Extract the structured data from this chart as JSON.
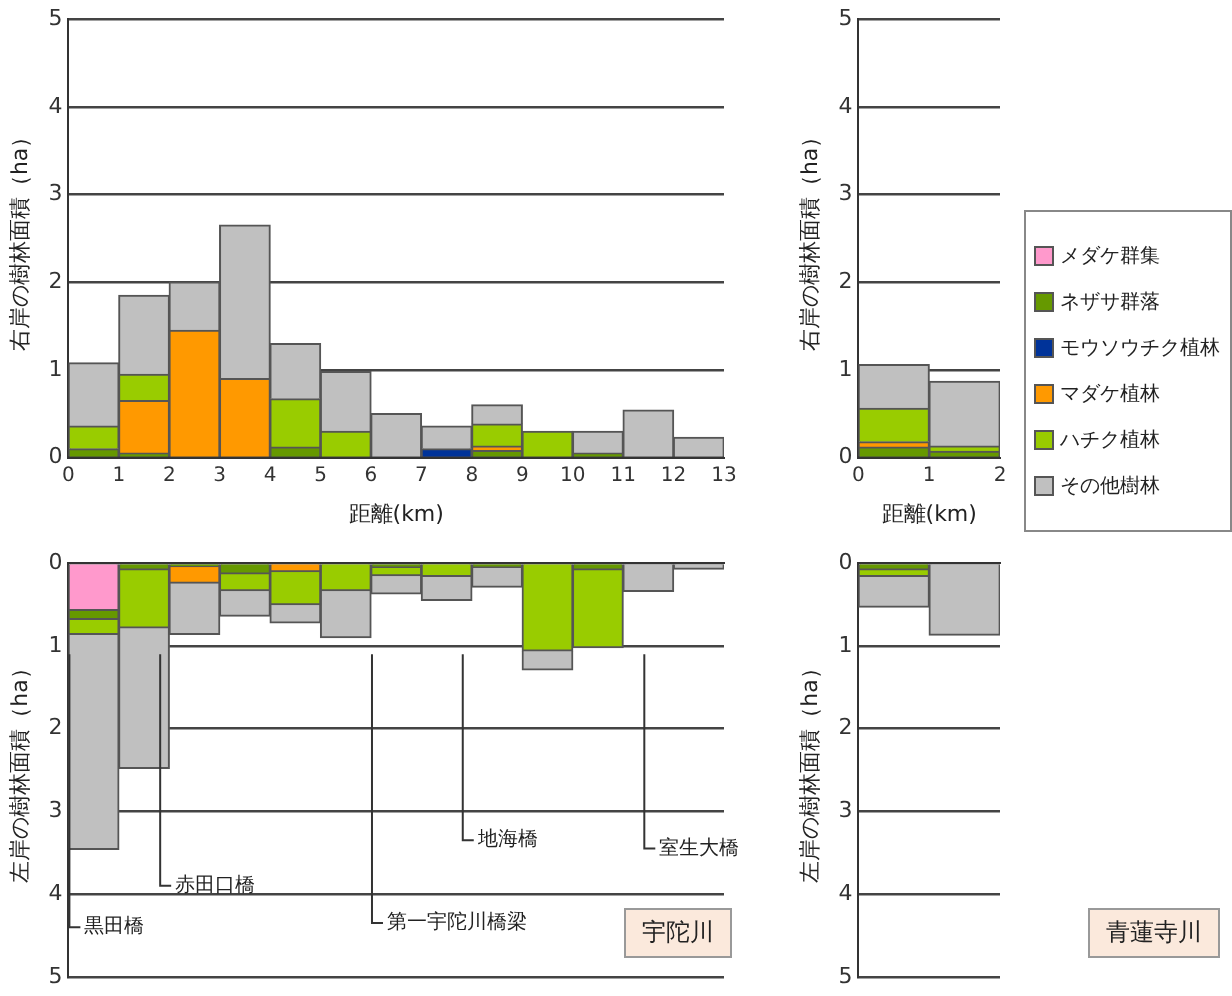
{
  "chart_data": [
    {
      "type": "bar",
      "stacked": true,
      "xlabel": "距離(km)",
      "ylabel": "右岸の樹林面積（ha）",
      "x": [
        0.5,
        1.5,
        2.5,
        3.5,
        4.5,
        5.5,
        6.5,
        7.5,
        8.5,
        9.5,
        10.5,
        11.5,
        12.5
      ],
      "xlim": [
        0,
        13
      ],
      "xticks": [
        0,
        1,
        2,
        3,
        4,
        5,
        6,
        7,
        8,
        9,
        10,
        11,
        12,
        13
      ],
      "ylim": [
        0,
        5
      ],
      "yticks": [
        0,
        1,
        2,
        3,
        4,
        5
      ],
      "grid": "y",
      "series": [
        {
          "color": "#669900",
          "values": [
            0.1,
            0.05,
            null,
            null,
            0.12,
            null,
            null,
            null,
            0.08,
            null,
            0.05,
            null,
            null
          ]
        },
        {
          "color": "#003399",
          "values": [
            null,
            null,
            null,
            null,
            null,
            null,
            null,
            0.1,
            null,
            null,
            null,
            null,
            null
          ]
        },
        {
          "color": "#ff9900",
          "values": [
            null,
            0.6,
            1.45,
            0.9,
            null,
            null,
            null,
            null,
            0.05,
            null,
            null,
            null,
            null
          ]
        },
        {
          "color": "#99cc00",
          "values": [
            0.26,
            0.3,
            null,
            null,
            0.55,
            0.3,
            null,
            null,
            0.25,
            0.3,
            null,
            null,
            null
          ]
        },
        {
          "color": "#c0c0c0",
          "values": [
            0.72,
            0.9,
            0.55,
            1.75,
            0.63,
            0.68,
            0.5,
            0.26,
            0.22,
            null,
            0.25,
            0.54,
            0.23
          ]
        }
      ]
    },
    {
      "type": "bar",
      "stacked": true,
      "xlabel": "距離(km)",
      "ylabel": "右岸の樹林面積（ha）",
      "x": [
        0.5,
        1.5
      ],
      "xlim": [
        0,
        2
      ],
      "xticks": [
        0,
        1,
        2
      ],
      "ylim": [
        0,
        5
      ],
      "yticks": [
        0,
        1,
        2,
        3,
        4,
        5
      ],
      "grid": "y",
      "legend": "right",
      "series": [
        {
          "name": "メダケ群集",
          "color": "#ff99cc",
          "values": [
            null,
            null
          ]
        },
        {
          "name": "ネザサ群落",
          "color": "#669900",
          "values": [
            0.12,
            0.07
          ]
        },
        {
          "name": "モウソウチク植林",
          "color": "#003399",
          "values": [
            null,
            null
          ]
        },
        {
          "name": "マダケ植林",
          "color": "#ff9900",
          "values": [
            0.06,
            null
          ]
        },
        {
          "name": "ハチク植林",
          "color": "#99cc00",
          "values": [
            0.38,
            0.06
          ]
        },
        {
          "name": "その他樹林",
          "color": "#c0c0c0",
          "values": [
            0.5,
            0.74
          ]
        }
      ]
    },
    {
      "type": "bar",
      "stacked": true,
      "ylabel": "左岸の樹林面積（ha）",
      "tick_labels": "y",
      "x": [
        0.5,
        1.5,
        2.5,
        3.5,
        4.5,
        5.5,
        6.5,
        7.5,
        8.5,
        9.5,
        10.5,
        11.5,
        12.5
      ],
      "xlim": [
        0,
        13
      ],
      "ylim": [
        5,
        0
      ],
      "yticks": [
        0,
        1,
        2,
        3,
        4,
        5
      ],
      "grid": "y",
      "ref_lines": [
        {
          "axis": "x",
          "value": 0,
          "label": "黒田橋"
        },
        {
          "axis": "x",
          "value": 1.8,
          "label": "赤田口橋"
        },
        {
          "axis": "x",
          "value": 6,
          "label": "第一宇陀川橋梁"
        },
        {
          "axis": "x",
          "value": 7.8,
          "label": "地海橋"
        },
        {
          "axis": "x",
          "value": 11.4,
          "label": "室生大橋"
        }
      ],
      "annotations": [
        "宇陀川"
      ],
      "series": [
        {
          "color": "#ff99cc",
          "values": [
            0.57,
            null,
            null,
            null,
            null,
            null,
            null,
            null,
            null,
            null,
            null,
            null,
            null
          ]
        },
        {
          "color": "#669900",
          "values": [
            0.11,
            0.08,
            0.04,
            0.13,
            null,
            null,
            0.05,
            null,
            0.05,
            null,
            0.08,
            null,
            null
          ]
        },
        {
          "color": "#ff9900",
          "values": [
            null,
            null,
            0.2,
            null,
            0.1,
            null,
            null,
            null,
            null,
            null,
            null,
            null,
            null
          ]
        },
        {
          "color": "#99cc00",
          "values": [
            0.18,
            0.7,
            null,
            0.2,
            0.4,
            0.33,
            0.1,
            0.16,
            null,
            1.06,
            0.94,
            null,
            null
          ]
        },
        {
          "color": "#c0c0c0",
          "values": [
            2.6,
            1.7,
            0.62,
            0.31,
            0.22,
            0.57,
            0.22,
            0.29,
            0.24,
            0.23,
            null,
            0.34,
            0.07
          ]
        }
      ]
    },
    {
      "type": "bar",
      "stacked": true,
      "ylabel": "左岸の樹林面積（ha）",
      "tick_labels": "y",
      "x": [
        0.5,
        1.5
      ],
      "xlim": [
        0,
        2
      ],
      "ylim": [
        5,
        0
      ],
      "yticks": [
        0,
        1,
        2,
        3,
        4,
        5
      ],
      "grid": "y",
      "annotations": [
        "青蓮寺川"
      ],
      "series": [
        {
          "color": "#669900",
          "values": [
            0.08,
            null
          ]
        },
        {
          "color": "#99cc00",
          "values": [
            0.08,
            null
          ]
        },
        {
          "color": "#c0c0c0",
          "values": [
            0.37,
            0.87
          ]
        }
      ]
    }
  ]
}
